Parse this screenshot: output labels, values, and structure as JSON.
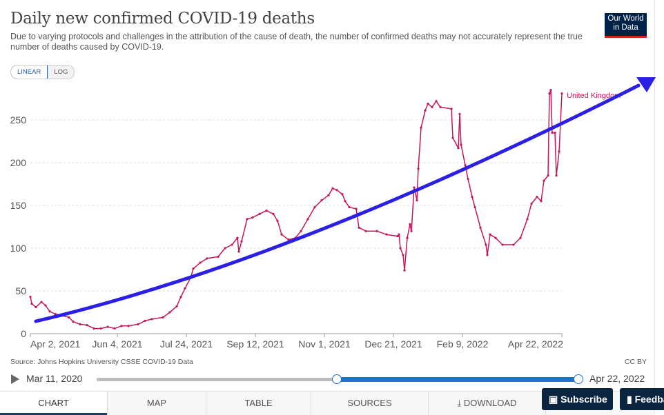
{
  "header": {
    "title": "Daily new confirmed COVID-19 deaths",
    "subtitle": "Due to varying protocols and challenges in the attribution of the cause of death, the number of confirmed deaths may not accurately represent the true number of deaths caused by COVID-19.",
    "logo_text": "Our World in Data"
  },
  "scale_toggle": {
    "linear_label": "LINEAR",
    "log_label": "LOG",
    "selected": "LINEAR"
  },
  "chart_data": {
    "type": "line",
    "title": "Daily new confirmed COVID-19 deaths",
    "ylim": [
      0,
      280
    ],
    "xlim": [
      "2021-04-02",
      "2022-04-22"
    ],
    "grid": "horizontal dashed",
    "y_ticks": [
      0,
      50,
      100,
      150,
      200,
      250
    ],
    "x_ticks": [
      {
        "date": "2021-04-02",
        "label": "Apr 2, 2021"
      },
      {
        "date": "2021-06-04",
        "label": "Jun 4, 2021"
      },
      {
        "date": "2021-07-24",
        "label": "Jul 24, 2021"
      },
      {
        "date": "2021-09-12",
        "label": "Sep 12, 2021"
      },
      {
        "date": "2021-11-01",
        "label": "Nov 1, 2021"
      },
      {
        "date": "2021-12-21",
        "label": "Dec 21, 2021"
      },
      {
        "date": "2022-02-09",
        "label": "Feb 9, 2022"
      },
      {
        "date": "2022-04-22",
        "label": "Apr 22, 2022"
      }
    ],
    "series": [
      {
        "name": "United Kingdom",
        "color": "#c2185b",
        "x": [
          "2021-04-02",
          "2021-04-03",
          "2021-04-06",
          "2021-04-10",
          "2021-04-13",
          "2021-04-16",
          "2021-04-20",
          "2021-04-25",
          "2021-04-30",
          "2021-05-03",
          "2021-05-08",
          "2021-05-13",
          "2021-05-18",
          "2021-05-23",
          "2021-05-28",
          "2021-06-02",
          "2021-06-07",
          "2021-06-12",
          "2021-06-19",
          "2021-06-24",
          "2021-06-29",
          "2021-07-07",
          "2021-07-12",
          "2021-07-17",
          "2021-07-20",
          "2021-07-23",
          "2021-07-27",
          "2021-07-29",
          "2021-08-03",
          "2021-08-08",
          "2021-08-16",
          "2021-08-21",
          "2021-08-26",
          "2021-08-30",
          "2021-08-31",
          "2021-09-02",
          "2021-09-06",
          "2021-09-10",
          "2021-09-15",
          "2021-09-20",
          "2021-09-25",
          "2021-09-28",
          "2021-10-01",
          "2021-10-06",
          "2021-10-11",
          "2021-10-15",
          "2021-10-20",
          "2021-10-25",
          "2021-10-30",
          "2021-11-04",
          "2021-11-07",
          "2021-11-10",
          "2021-11-14",
          "2021-11-16",
          "2021-11-19",
          "2021-11-24",
          "2021-11-26",
          "2021-12-01",
          "2021-12-09",
          "2021-12-16",
          "2021-12-24",
          "2021-12-25",
          "2021-12-26",
          "2021-12-28",
          "2021-12-29",
          "2021-12-31",
          "2022-01-02",
          "2022-01-03",
          "2022-01-05",
          "2022-01-07",
          "2022-01-08",
          "2022-01-10",
          "2022-01-13",
          "2022-01-15",
          "2022-01-18",
          "2022-01-21",
          "2022-01-24",
          "2022-02-01",
          "2022-02-02",
          "2022-02-06",
          "2022-02-07",
          "2022-02-08",
          "2022-02-11",
          "2022-02-13",
          "2022-02-16",
          "2022-02-18",
          "2022-02-22",
          "2022-02-26",
          "2022-02-27",
          "2022-03-01",
          "2022-03-05",
          "2022-03-10",
          "2022-03-18",
          "2022-03-23",
          "2022-03-28",
          "2022-03-31",
          "2022-04-04",
          "2022-04-07",
          "2022-04-09",
          "2022-04-12",
          "2022-04-13",
          "2022-04-14",
          "2022-04-15",
          "2022-04-17",
          "2022-04-18",
          "2022-04-20",
          "2022-04-22"
        ],
        "values": [
          43,
          35,
          31,
          37,
          33,
          26,
          23,
          21,
          19,
          14,
          11,
          10,
          6,
          6,
          8,
          6,
          9,
          9,
          11,
          15,
          17,
          19,
          25,
          32,
          43,
          53,
          65,
          76,
          83,
          88,
          90,
          100,
          104,
          112,
          96,
          108,
          134,
          136,
          140,
          144,
          140,
          132,
          116,
          110,
          112,
          120,
          134,
          148,
          156,
          162,
          170,
          168,
          163,
          155,
          148,
          146,
          124,
          120,
          120,
          116,
          114,
          116,
          100,
          92,
          74,
          112,
          128,
          120,
          171,
          156,
          193,
          241,
          261,
          269,
          265,
          272,
          265,
          263,
          229,
          217,
          257,
          221,
          197,
          181,
          160,
          148,
          124,
          104,
          92,
          116,
          112,
          104,
          104,
          112,
          134,
          152,
          160,
          155,
          179,
          185,
          281,
          285,
          235,
          235,
          185,
          213,
          281
        ]
      }
    ],
    "annotation": {
      "type": "arrow",
      "color": "#2b1fe6",
      "direction": "upward trend"
    }
  },
  "footer": {
    "source": "Source: Johns Hopkins University CSSE COVID-19 Data",
    "license": "CC BY"
  },
  "timeline": {
    "start_label": "Mar 11, 2020",
    "end_label": "Apr 22, 2022",
    "range_start": "2021-04-02",
    "range_end": "2022-04-22"
  },
  "tabs": [
    {
      "label": "CHART",
      "active": true
    },
    {
      "label": "MAP"
    },
    {
      "label": "TABLE"
    },
    {
      "label": "SOURCES"
    },
    {
      "label": "DOWNLOAD"
    }
  ],
  "buttons": {
    "subscribe": "Subscribe",
    "feedback": "Feedback"
  }
}
